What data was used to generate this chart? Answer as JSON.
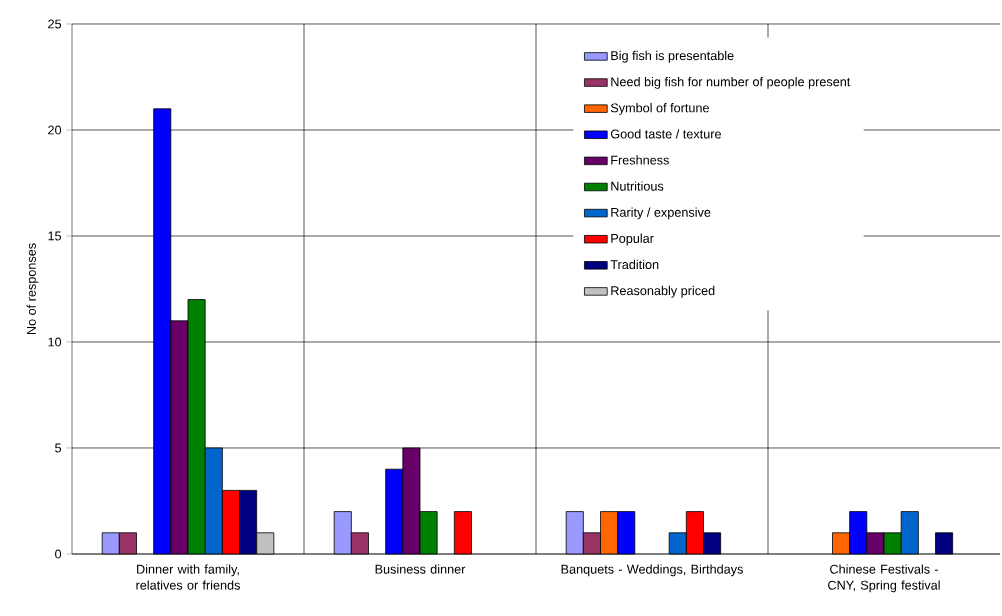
{
  "chart_data": {
    "type": "bar",
    "ylabel": "No of responses",
    "categories": [
      "Dinner with family, relatives or friends",
      "Business dinner",
      "Banquets - Weddings, Birthdays",
      "Chinese Festivals - CNY, Spring festival"
    ],
    "series": [
      {
        "name": "Big fish is presentable",
        "color": "#9999ff",
        "values": [
          1,
          2,
          2,
          null
        ]
      },
      {
        "name": "Need big fish for number of people present",
        "color": "#993366",
        "values": [
          1,
          1,
          1,
          null
        ]
      },
      {
        "name": "Symbol of fortune",
        "color": "#ff6600",
        "values": [
          null,
          null,
          2,
          1
        ]
      },
      {
        "name": "Good taste / texture",
        "color": "#0000ff",
        "values": [
          21,
          4,
          2,
          2
        ]
      },
      {
        "name": "Freshness",
        "color": "#660066",
        "values": [
          11,
          5,
          null,
          1
        ]
      },
      {
        "name": "Nutritious",
        "color": "#008000",
        "values": [
          12,
          2,
          null,
          1
        ]
      },
      {
        "name": "Rarity / expensive",
        "color": "#0066cc",
        "values": [
          5,
          null,
          1,
          2
        ]
      },
      {
        "name": "Popular",
        "color": "#ff0000",
        "values": [
          3,
          2,
          2,
          null
        ]
      },
      {
        "name": "Tradition",
        "color": "#000080",
        "values": [
          3,
          null,
          1,
          1
        ]
      },
      {
        "name": "Reasonably priced",
        "color": "#c0c0c0",
        "values": [
          1,
          null,
          null,
          null
        ]
      }
    ],
    "ylim": [
      0,
      25
    ],
    "yticks": [
      0,
      5,
      10,
      15,
      20,
      25
    ],
    "grid": true,
    "legend": "top right"
  }
}
